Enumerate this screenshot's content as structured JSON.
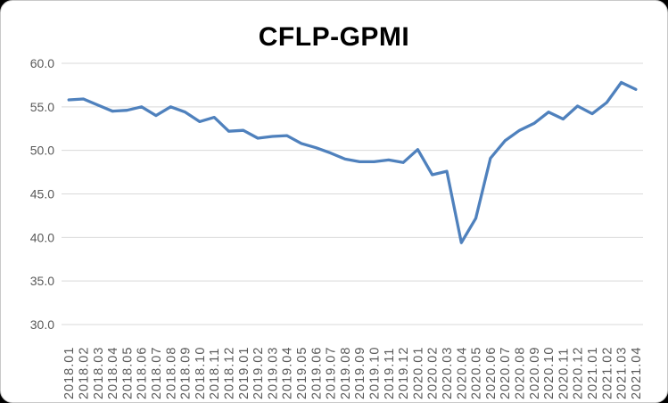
{
  "chart_title": "CFLP-GPMI",
  "chart_data": {
    "type": "line",
    "title": "CFLP-GPMI",
    "xlabel": "",
    "ylabel": "",
    "ylim": [
      30,
      60
    ],
    "ytick_step": 5,
    "ytick_labels": [
      "60.0",
      "55.0",
      "50.0",
      "45.0",
      "40.0",
      "35.0",
      "30.0"
    ],
    "grid": true,
    "legend_position": "none",
    "categories": [
      "2018.01",
      "2018.02",
      "2018.03",
      "2018.04",
      "2018.05",
      "2018.06",
      "2018.07",
      "2018.08",
      "2018.09",
      "2018.10",
      "2018.11",
      "2018.12",
      "2019.01",
      "2019.02",
      "2019.03",
      "2019.04",
      "2019.05",
      "2019.06",
      "2019.07",
      "2019.08",
      "2019.09",
      "2019.10",
      "2019.11",
      "2019.12",
      "2020.01",
      "2020.02",
      "2020.03",
      "2020.04",
      "2020.05",
      "2020.06",
      "2020.07",
      "2020.08",
      "2020.09",
      "2020.10",
      "2020.11",
      "2020.12",
      "2021.01",
      "2021.02",
      "2021.03",
      "2021.04"
    ],
    "series": [
      {
        "name": "CFLP-GPMI",
        "color": "#4F81BD",
        "values": [
          55.8,
          55.9,
          55.2,
          54.5,
          54.6,
          55.0,
          54.0,
          55.0,
          54.4,
          53.3,
          53.8,
          52.2,
          52.3,
          51.4,
          51.6,
          51.7,
          50.8,
          50.3,
          49.7,
          49.0,
          48.7,
          48.7,
          48.9,
          48.6,
          50.1,
          47.2,
          47.6,
          39.4,
          42.2,
          49.1,
          51.1,
          52.3,
          53.1,
          54.4,
          53.6,
          55.1,
          54.2,
          55.5,
          57.8,
          57.0
        ]
      }
    ],
    "colors": {
      "line": "#4F81BD",
      "gridline": "#D9D9D9",
      "axis_label": "#595959",
      "title": "#000000",
      "background": "#FFFFFF"
    }
  }
}
